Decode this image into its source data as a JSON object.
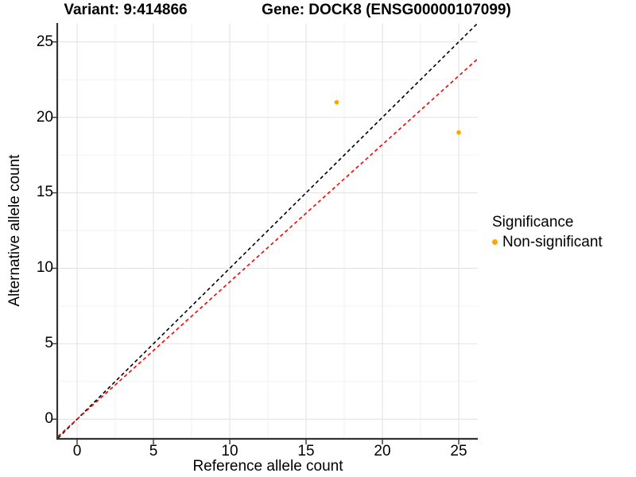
{
  "titles": {
    "variant": "Variant: 9:414866",
    "gene": "Gene: DOCK8 (ENSG00000107099)"
  },
  "axes": {
    "x_label": "Reference allele count",
    "y_label": "Alternative allele count",
    "x_ticks": [
      "0",
      "5",
      "10",
      "15",
      "20",
      "25"
    ],
    "y_ticks": [
      "0",
      "5",
      "10",
      "15",
      "20",
      "25"
    ]
  },
  "legend": {
    "title": "Significance",
    "items": [
      {
        "label": "Non-significant",
        "color": "#FFA500"
      }
    ]
  },
  "chart_data": {
    "type": "scatter",
    "title": "Variant: 9:414866 | Gene: DOCK8 (ENSG00000107099)",
    "xlabel": "Reference allele count",
    "ylabel": "Alternative allele count",
    "xlim": [
      -1.25,
      26.25
    ],
    "ylim": [
      -1.25,
      26.25
    ],
    "x_ticks": [
      0,
      5,
      10,
      15,
      20,
      25
    ],
    "y_ticks": [
      0,
      5,
      10,
      15,
      20,
      25
    ],
    "grid": "major+minor",
    "legend_position": "right",
    "point_color": "#FFA500",
    "points": [
      {
        "x": 17,
        "y": 21,
        "series": "Non-significant"
      },
      {
        "x": 25,
        "y": 19,
        "series": "Non-significant"
      }
    ],
    "lines": [
      {
        "name": "identity-line",
        "slope": 1.0,
        "intercept": 0,
        "color": "#000000",
        "style": "dashed"
      },
      {
        "name": "fitted-line",
        "slope": 0.91,
        "intercept": 0,
        "color": "#FF0000",
        "style": "dashed"
      }
    ]
  }
}
